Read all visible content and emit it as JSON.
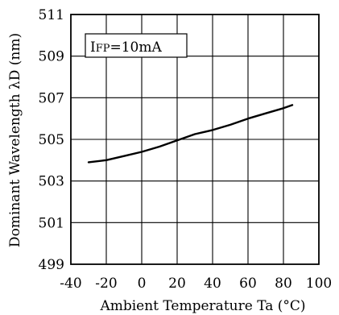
{
  "chart_data": {
    "type": "line",
    "xlabel": "Ambient Temperature Ta (°C)",
    "ylabel": "Dominant Wavelength λD (nm)",
    "xlim": [
      -40,
      100
    ],
    "ylim": [
      499,
      511
    ],
    "xticks": [
      -40,
      -20,
      0,
      20,
      40,
      60,
      80,
      100
    ],
    "yticks": [
      499,
      501,
      503,
      505,
      507,
      509,
      511
    ],
    "grid": true,
    "annotation": {
      "main": "I",
      "sub": "FP",
      "tail": "=10mA"
    },
    "series": [
      {
        "x": [
          -30,
          -20,
          -10,
          0,
          10,
          20,
          30,
          40,
          50,
          60,
          70,
          80,
          85
        ],
        "y": [
          503.9,
          504.0,
          504.2,
          504.4,
          504.65,
          504.95,
          505.25,
          505.45,
          505.7,
          506.0,
          506.25,
          506.5,
          506.65
        ]
      }
    ]
  }
}
